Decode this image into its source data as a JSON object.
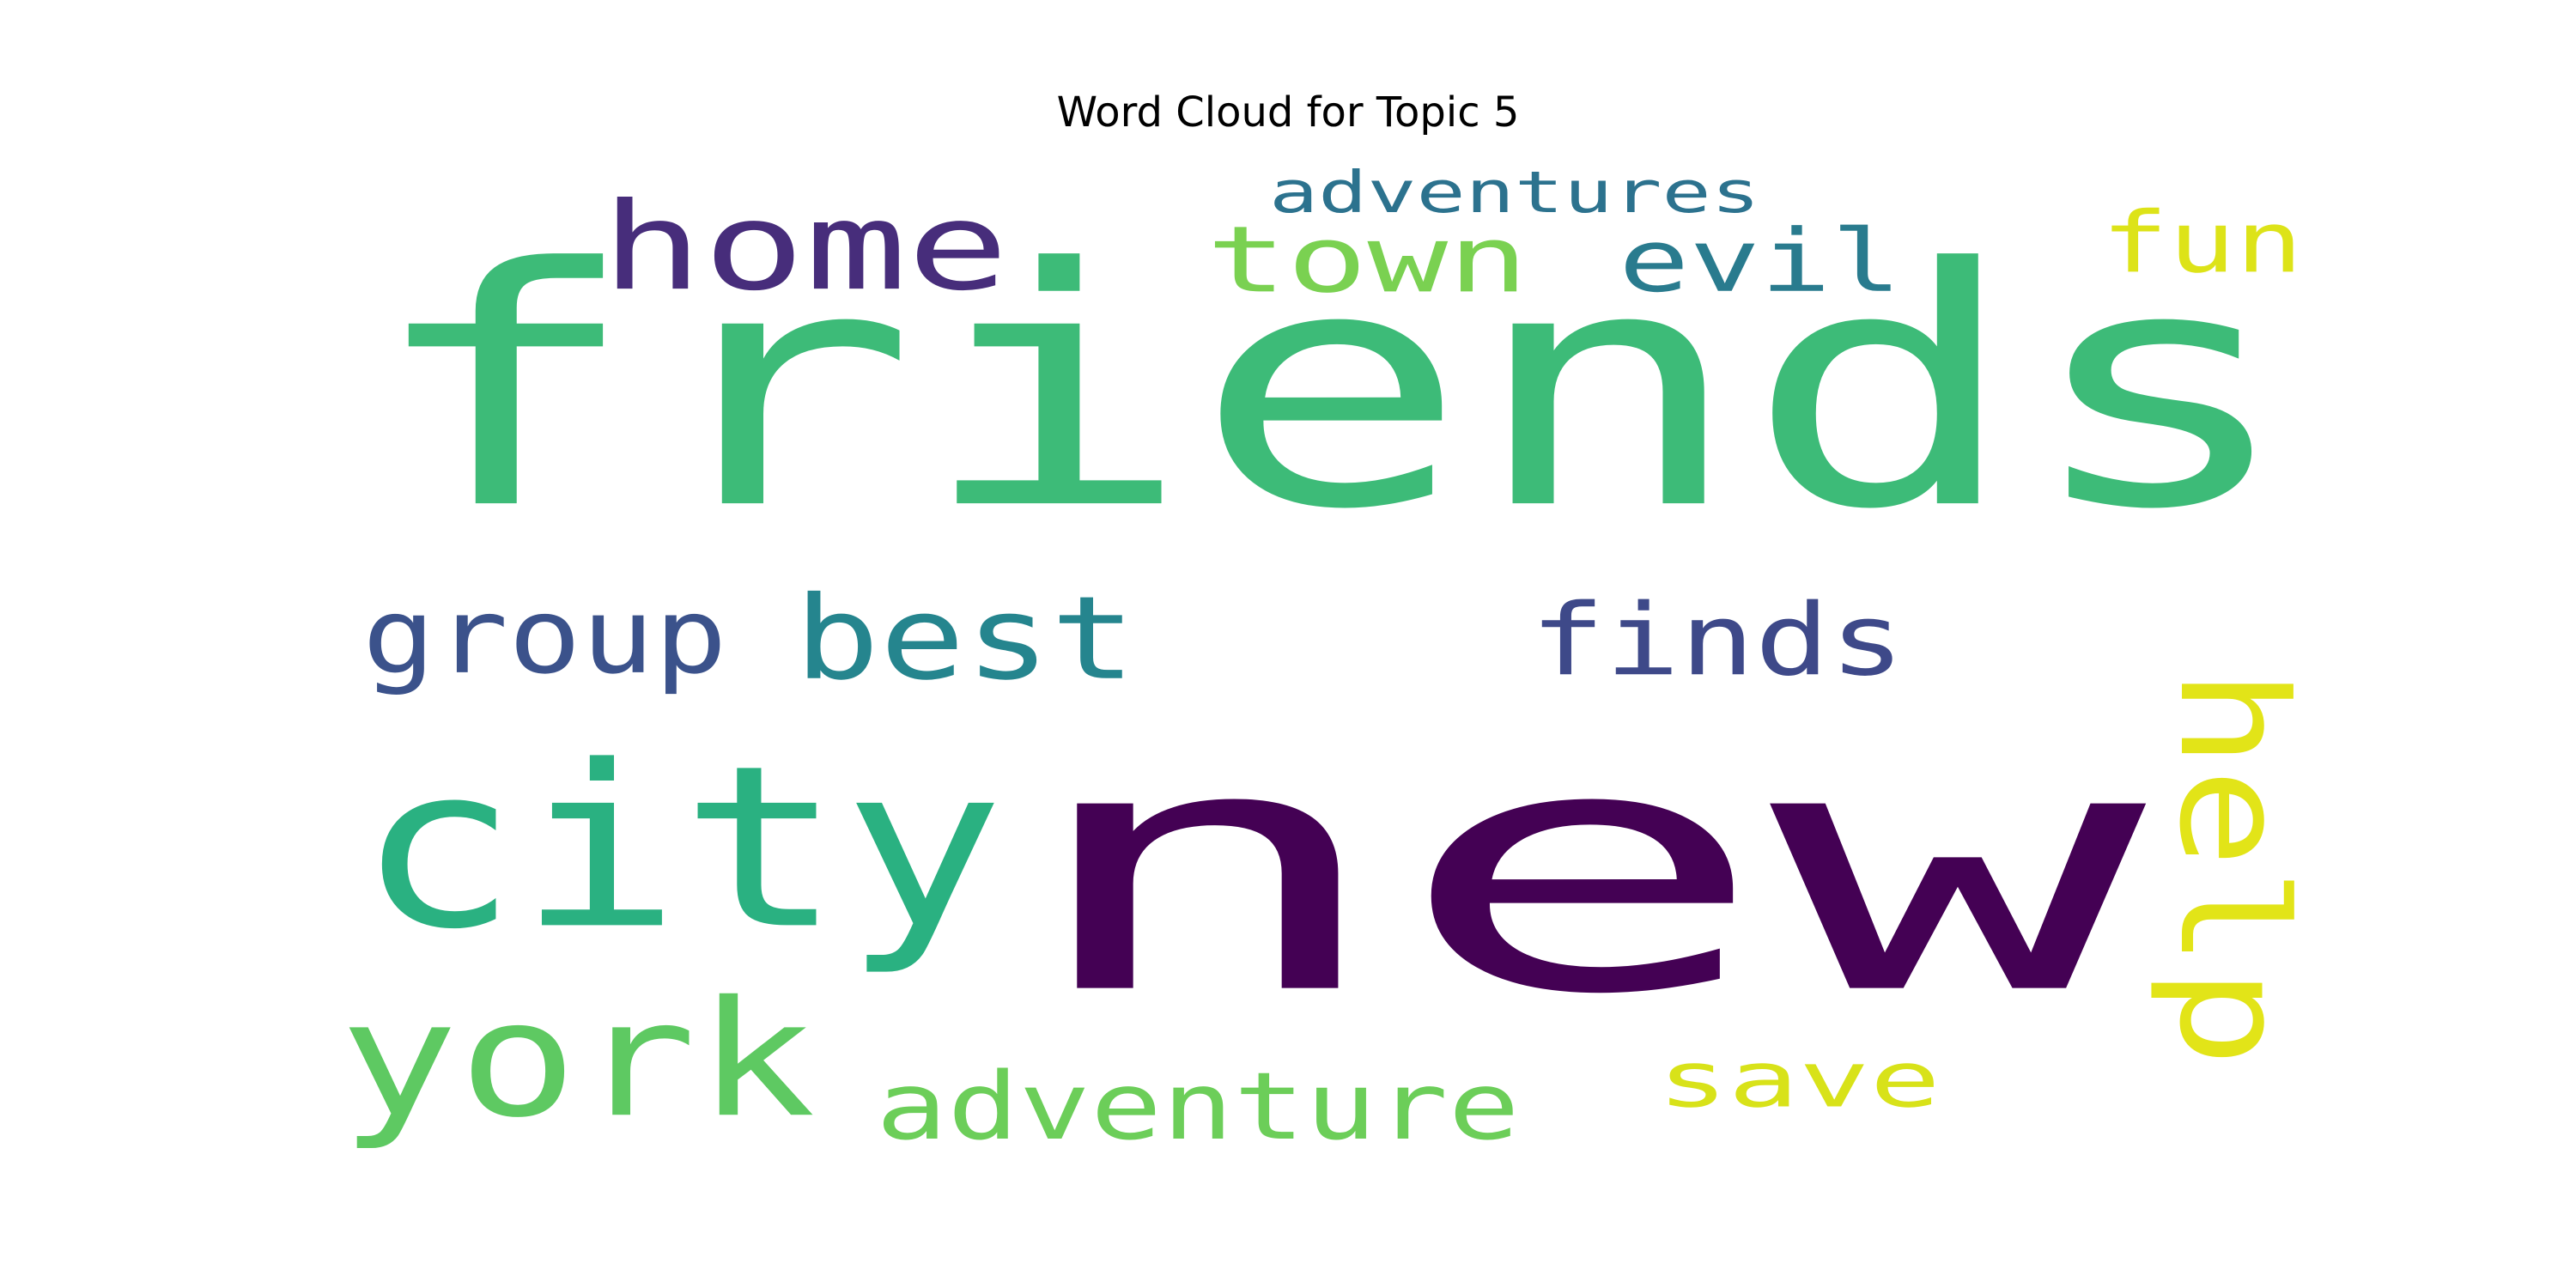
{
  "chart_data": {
    "type": "wordcloud",
    "title": "Word Cloud for Topic 5",
    "words": [
      {
        "text": "friends",
        "color": "#3dbb78"
      },
      {
        "text": "new",
        "color": "#440154"
      },
      {
        "text": "city",
        "color": "#2ab181"
      },
      {
        "text": "home",
        "color": "#472d7b"
      },
      {
        "text": "town",
        "color": "#7ad151"
      },
      {
        "text": "evil",
        "color": "#297b8e"
      },
      {
        "text": "adventures",
        "color": "#2c728e"
      },
      {
        "text": "fun",
        "color": "#dde318"
      },
      {
        "text": "group",
        "color": "#3b528b"
      },
      {
        "text": "best",
        "color": "#25858e"
      },
      {
        "text": "finds",
        "color": "#3e4989"
      },
      {
        "text": "help",
        "color": "#e2e418"
      },
      {
        "text": "york",
        "color": "#5ec962"
      },
      {
        "text": "adventure",
        "color": "#6cce59"
      },
      {
        "text": "save",
        "color": "#d8e219"
      }
    ]
  }
}
